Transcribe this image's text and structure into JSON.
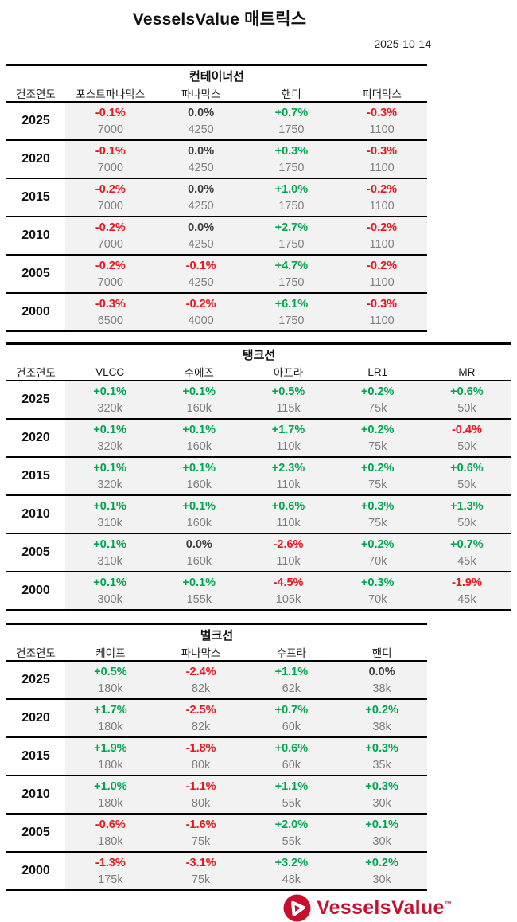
{
  "page": {
    "title": "VesselsValue 매트릭스",
    "date": "2025-10-14"
  },
  "colors": {
    "positive": "#00a551",
    "negative": "#e8141e",
    "neutral": "#404040",
    "value_gray": "#808080",
    "row_bg": "#f2f2f2",
    "brand_red": "#c8102e"
  },
  "tables": [
    {
      "section_title": "컨테이너선",
      "year_header": "건조연도",
      "columns": [
        "포스트파나막스",
        "파나막스",
        "핸디",
        "피더막스"
      ],
      "rows": [
        {
          "year": "2025",
          "cells": [
            {
              "pct": "-0.1%",
              "value": "7000"
            },
            {
              "pct": "0.0%",
              "value": "4250"
            },
            {
              "pct": "+0.7%",
              "value": "1750"
            },
            {
              "pct": "-0.3%",
              "value": "1100"
            }
          ]
        },
        {
          "year": "2020",
          "cells": [
            {
              "pct": "-0.1%",
              "value": "7000"
            },
            {
              "pct": "0.0%",
              "value": "4250"
            },
            {
              "pct": "+0.3%",
              "value": "1750"
            },
            {
              "pct": "-0.3%",
              "value": "1100"
            }
          ]
        },
        {
          "year": "2015",
          "cells": [
            {
              "pct": "-0.2%",
              "value": "7000"
            },
            {
              "pct": "0.0%",
              "value": "4250"
            },
            {
              "pct": "+1.0%",
              "value": "1750"
            },
            {
              "pct": "-0.2%",
              "value": "1100"
            }
          ]
        },
        {
          "year": "2010",
          "cells": [
            {
              "pct": "-0.2%",
              "value": "7000"
            },
            {
              "pct": "0.0%",
              "value": "4250"
            },
            {
              "pct": "+2.7%",
              "value": "1750"
            },
            {
              "pct": "-0.2%",
              "value": "1100"
            }
          ]
        },
        {
          "year": "2005",
          "cells": [
            {
              "pct": "-0.2%",
              "value": "7000"
            },
            {
              "pct": "-0.1%",
              "value": "4250"
            },
            {
              "pct": "+4.7%",
              "value": "1750"
            },
            {
              "pct": "-0.2%",
              "value": "1100"
            }
          ]
        },
        {
          "year": "2000",
          "cells": [
            {
              "pct": "-0.3%",
              "value": "6500"
            },
            {
              "pct": "-0.2%",
              "value": "4000"
            },
            {
              "pct": "+6.1%",
              "value": "1750"
            },
            {
              "pct": "-0.3%",
              "value": "1100"
            }
          ]
        }
      ]
    },
    {
      "section_title": "탱크선",
      "year_header": "건조연도",
      "columns": [
        "VLCC",
        "수에즈",
        "아프라",
        "LR1",
        "MR"
      ],
      "rows": [
        {
          "year": "2025",
          "cells": [
            {
              "pct": "+0.1%",
              "value": "320k"
            },
            {
              "pct": "+0.1%",
              "value": "160k"
            },
            {
              "pct": "+0.5%",
              "value": "115k"
            },
            {
              "pct": "+0.2%",
              "value": "75k"
            },
            {
              "pct": "+0.6%",
              "value": "50k"
            }
          ]
        },
        {
          "year": "2020",
          "cells": [
            {
              "pct": "+0.1%",
              "value": "320k"
            },
            {
              "pct": "+0.1%",
              "value": "160k"
            },
            {
              "pct": "+1.7%",
              "value": "110k"
            },
            {
              "pct": "+0.2%",
              "value": "75k"
            },
            {
              "pct": "-0.4%",
              "value": "50k"
            }
          ]
        },
        {
          "year": "2015",
          "cells": [
            {
              "pct": "+0.1%",
              "value": "320k"
            },
            {
              "pct": "+0.1%",
              "value": "160k"
            },
            {
              "pct": "+2.3%",
              "value": "110k"
            },
            {
              "pct": "+0.2%",
              "value": "75k"
            },
            {
              "pct": "+0.6%",
              "value": "50k"
            }
          ]
        },
        {
          "year": "2010",
          "cells": [
            {
              "pct": "+0.1%",
              "value": "310k"
            },
            {
              "pct": "+0.1%",
              "value": "160k"
            },
            {
              "pct": "+0.6%",
              "value": "110k"
            },
            {
              "pct": "+0.3%",
              "value": "75k"
            },
            {
              "pct": "+1.3%",
              "value": "50k"
            }
          ]
        },
        {
          "year": "2005",
          "cells": [
            {
              "pct": "+0.1%",
              "value": "310k"
            },
            {
              "pct": "0.0%",
              "value": "160k"
            },
            {
              "pct": "-2.6%",
              "value": "110k"
            },
            {
              "pct": "+0.2%",
              "value": "70k"
            },
            {
              "pct": "+0.7%",
              "value": "45k"
            }
          ]
        },
        {
          "year": "2000",
          "cells": [
            {
              "pct": "+0.1%",
              "value": "300k"
            },
            {
              "pct": "+0.1%",
              "value": "155k"
            },
            {
              "pct": "-4.5%",
              "value": "105k"
            },
            {
              "pct": "+0.3%",
              "value": "70k"
            },
            {
              "pct": "-1.9%",
              "value": "45k"
            }
          ]
        }
      ]
    },
    {
      "section_title": "벌크선",
      "year_header": "건조연도",
      "columns": [
        "케이프",
        "파나막스",
        "수프라",
        "핸디"
      ],
      "rows": [
        {
          "year": "2025",
          "cells": [
            {
              "pct": "+0.5%",
              "value": "180k"
            },
            {
              "pct": "-2.4%",
              "value": "82k"
            },
            {
              "pct": "+1.1%",
              "value": "62k"
            },
            {
              "pct": "0.0%",
              "value": "38k"
            }
          ]
        },
        {
          "year": "2020",
          "cells": [
            {
              "pct": "+1.7%",
              "value": "180k"
            },
            {
              "pct": "-2.5%",
              "value": "82k"
            },
            {
              "pct": "+0.7%",
              "value": "60k"
            },
            {
              "pct": "+0.2%",
              "value": "38k"
            }
          ]
        },
        {
          "year": "2015",
          "cells": [
            {
              "pct": "+1.9%",
              "value": "180k"
            },
            {
              "pct": "-1.8%",
              "value": "80k"
            },
            {
              "pct": "+0.6%",
              "value": "60k"
            },
            {
              "pct": "+0.3%",
              "value": "35k"
            }
          ]
        },
        {
          "year": "2010",
          "cells": [
            {
              "pct": "+1.0%",
              "value": "180k"
            },
            {
              "pct": "-1.1%",
              "value": "80k"
            },
            {
              "pct": "+1.1%",
              "value": "55k"
            },
            {
              "pct": "+0.3%",
              "value": "30k"
            }
          ]
        },
        {
          "year": "2005",
          "cells": [
            {
              "pct": "-0.6%",
              "value": "180k"
            },
            {
              "pct": "-1.6%",
              "value": "75k"
            },
            {
              "pct": "+2.0%",
              "value": "55k"
            },
            {
              "pct": "+0.1%",
              "value": "30k"
            }
          ]
        },
        {
          "year": "2000",
          "cells": [
            {
              "pct": "-1.3%",
              "value": "175k"
            },
            {
              "pct": "-3.1%",
              "value": "75k"
            },
            {
              "pct": "+3.2%",
              "value": "48k"
            },
            {
              "pct": "+0.2%",
              "value": "30k"
            }
          ]
        }
      ]
    }
  ],
  "footer": {
    "logo_text": "VesselsValue",
    "trademark": "™"
  }
}
